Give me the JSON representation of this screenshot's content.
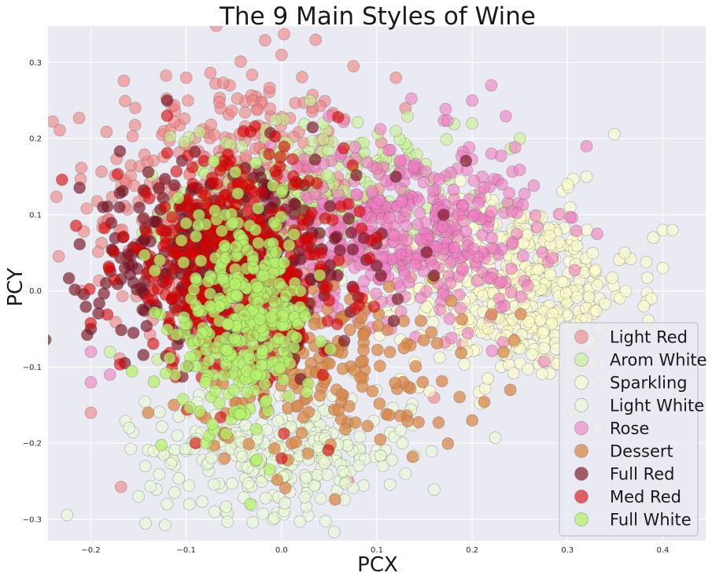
{
  "chart_data": {
    "type": "scatter",
    "title": "The 9 Main Styles of Wine",
    "xlabel": "PCX",
    "ylabel": "PCY",
    "xlim": [
      -0.245,
      0.445
    ],
    "ylim": [
      -0.328,
      0.348
    ],
    "x_ticks": [
      -0.2,
      -0.1,
      0.0,
      0.1,
      0.2,
      0.3,
      0.4
    ],
    "x_tick_labels": [
      "−0.2",
      "−0.1",
      "0.0",
      "0.1",
      "0.2",
      "0.3",
      "0.4"
    ],
    "y_ticks": [
      -0.3,
      -0.2,
      -0.1,
      0.0,
      0.1,
      0.2,
      0.3
    ],
    "y_tick_labels": [
      "−0.3",
      "−0.2",
      "−0.1",
      "0.0",
      "0.1",
      "0.2",
      "0.3"
    ],
    "grid": true,
    "legend_position": "lower-right",
    "background_color": "#eaeaf2",
    "point_count_note_hidden": false,
    "series": [
      {
        "name": "Light Red",
        "color": "#f08080",
        "opacity": 0.6,
        "cluster": {
          "cx": -0.06,
          "cy": 0.12,
          "sx": 0.07,
          "sy": 0.09,
          "n": 420
        },
        "values": [
          [
            -0.21,
            0.0
          ],
          [
            -0.2,
            -0.16
          ],
          [
            -0.03,
            0.25
          ],
          [
            0.0,
            0.31
          ],
          [
            0.12,
            0.28
          ],
          [
            0.07,
            -0.25
          ],
          [
            0.16,
            -0.14
          ],
          [
            0.19,
            -0.07
          ],
          [
            -0.1,
            0.28
          ],
          [
            0.13,
            0.24
          ]
        ]
      },
      {
        "name": "Arom White",
        "color": "#c6f28e",
        "opacity": 0.6,
        "cluster": {
          "cx": 0.03,
          "cy": 0.12,
          "sx": 0.07,
          "sy": 0.05,
          "n": 260
        },
        "values": [
          [
            0.03,
            0.25
          ],
          [
            0.12,
            0.21
          ],
          [
            0.2,
            0.22
          ],
          [
            0.25,
            0.2
          ],
          [
            -0.13,
            -0.09
          ],
          [
            -0.18,
            -0.08
          ]
        ]
      },
      {
        "name": "Sparkling",
        "color": "#fdfdcc",
        "opacity": 0.6,
        "cluster": {
          "cx": 0.25,
          "cy": 0.0,
          "sx": 0.06,
          "sy": 0.06,
          "n": 460
        },
        "values": [
          [
            0.4,
            0.08
          ],
          [
            0.41,
            0.08
          ],
          [
            0.39,
            0.07
          ],
          [
            0.4,
            0.03
          ],
          [
            0.36,
            0.05
          ],
          [
            0.38,
            -0.02
          ],
          [
            0.32,
            0.15
          ],
          [
            0.3,
            0.14
          ]
        ]
      },
      {
        "name": "Light White",
        "color": "#eafad6",
        "opacity": 0.6,
        "cluster": {
          "cx": 0.0,
          "cy": -0.21,
          "sx": 0.07,
          "sy": 0.04,
          "n": 300
        },
        "values": [
          [
            -0.15,
            -0.27
          ],
          [
            -0.12,
            -0.28
          ],
          [
            -0.07,
            -0.29
          ],
          [
            0.13,
            -0.24
          ],
          [
            -0.16,
            -0.18
          ]
        ]
      },
      {
        "name": "Rose",
        "color": "#f07cc0",
        "opacity": 0.6,
        "cluster": {
          "cx": 0.13,
          "cy": 0.08,
          "sx": 0.07,
          "sy": 0.06,
          "n": 460
        },
        "values": [
          [
            -0.2,
            -0.12
          ],
          [
            -0.2,
            -0.08
          ],
          [
            0.22,
            0.27
          ],
          [
            0.2,
            0.25
          ],
          [
            0.32,
            0.19
          ],
          [
            -0.18,
            -0.11
          ]
        ]
      },
      {
        "name": "Dessert",
        "color": "#d9884a",
        "opacity": 0.75,
        "cluster": {
          "cx": 0.05,
          "cy": -0.1,
          "sx": 0.07,
          "sy": 0.06,
          "n": 190
        },
        "values": [
          [
            0.2,
            -0.17
          ],
          [
            0.24,
            -0.13
          ],
          [
            -0.14,
            -0.16
          ],
          [
            -0.06,
            -0.22
          ]
        ]
      },
      {
        "name": "Full Red",
        "color": "#7a1020",
        "opacity": 0.65,
        "cluster": {
          "cx": -0.06,
          "cy": 0.04,
          "sx": 0.07,
          "sy": 0.06,
          "n": 430
        },
        "values": [
          [
            -0.2,
            -0.05
          ],
          [
            -0.12,
            0.25
          ],
          [
            0.12,
            0.15
          ],
          [
            0.17,
            0.1
          ],
          [
            0.16,
            0.02
          ],
          [
            -0.17,
            0.11
          ]
        ]
      },
      {
        "name": "Med Red",
        "color": "#d80000",
        "opacity": 0.6,
        "cluster": {
          "cx": -0.05,
          "cy": 0.03,
          "sx": 0.06,
          "sy": 0.07,
          "n": 440
        },
        "values": [
          [
            -0.09,
            -0.2
          ],
          [
            0.0,
            -0.22
          ],
          [
            0.1,
            0.07
          ],
          [
            0.06,
            0.04
          ],
          [
            -0.12,
            0.23
          ]
        ]
      },
      {
        "name": "Full White",
        "color": "#b6f26b",
        "opacity": 0.75,
        "cluster": {
          "cx": -0.04,
          "cy": -0.04,
          "sx": 0.035,
          "sy": 0.07,
          "n": 320
        },
        "values": [
          [
            -0.08,
            -0.12
          ],
          [
            -0.1,
            -0.1
          ],
          [
            0.0,
            0.13
          ],
          [
            -0.03,
            0.04
          ]
        ]
      }
    ]
  }
}
